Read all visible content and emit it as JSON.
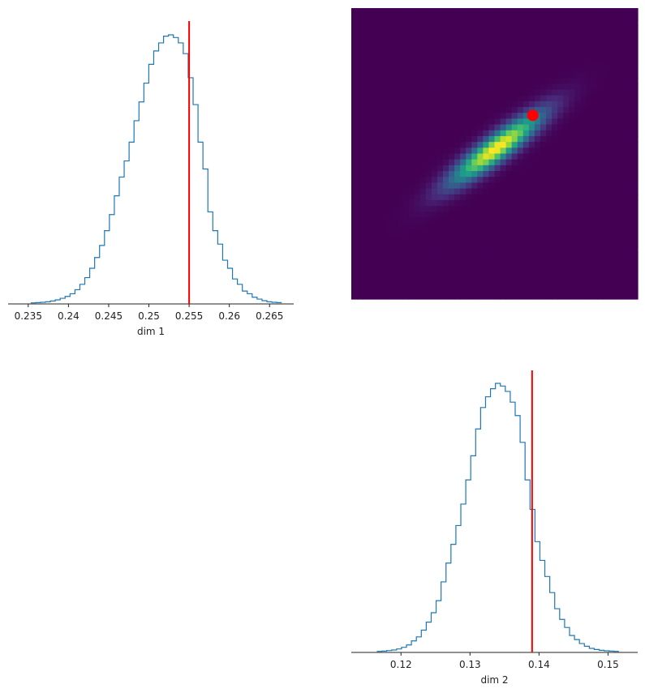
{
  "chart_data": [
    {
      "type": "histogram",
      "panel": "top-left",
      "xlabel": "dim 1",
      "xlim": [
        0.2325,
        0.268
      ],
      "xticks": [
        0.235,
        0.24,
        0.245,
        0.25,
        0.255,
        0.26,
        0.265
      ],
      "xtick_labels": [
        "0.235",
        "0.24",
        "0.245",
        "0.25",
        "0.255",
        "0.26",
        "0.265"
      ],
      "bins": {
        "start": 0.2353,
        "width": 0.000612,
        "counts": [
          0.1,
          0.2,
          0.3,
          0.5,
          0.8,
          1.2,
          1.8,
          2.5,
          3.5,
          5,
          7,
          9.5,
          13,
          17,
          21.5,
          27,
          33,
          40,
          47,
          53,
          60,
          68,
          75,
          82,
          89,
          94,
          97,
          99.5,
          100,
          99,
          97,
          93,
          84,
          74,
          60,
          50,
          34,
          27,
          22,
          16,
          13,
          9,
          7,
          4.5,
          3.5,
          2.2,
          1.5,
          0.9,
          0.5,
          0.3,
          0.2
        ]
      },
      "reference_x": 0.255,
      "line_color": "#1f77b4",
      "reference_color": "#ff0000"
    },
    {
      "type": "heatmap",
      "panel": "top-right",
      "xlim": [
        0.2325,
        0.268
      ],
      "ylim": [
        0.1128,
        0.1543
      ],
      "grid_cells": 50,
      "mean": [
        0.2505,
        0.1343
      ],
      "std": [
        0.0038,
        0.0034
      ],
      "correlation": 0.9,
      "reference_point": [
        0.255,
        0.139
      ],
      "colormap": "viridis",
      "reference_color": "#ff0000"
    },
    {
      "type": "histogram",
      "panel": "bottom-right",
      "xlabel": "dim 2",
      "xlim": [
        0.1128,
        0.1543
      ],
      "xticks": [
        0.12,
        0.13,
        0.14,
        0.15
      ],
      "xtick_labels": [
        "0.12",
        "0.13",
        "0.14",
        "0.15"
      ],
      "bins": {
        "start": 0.1165,
        "width": 0.000716,
        "counts": [
          0.1,
          0.2,
          0.4,
          0.6,
          1,
          1.6,
          2.5,
          4,
          5.5,
          8,
          11,
          14.5,
          19,
          26,
          33,
          40,
          47,
          55,
          64,
          73,
          83,
          91,
          95,
          98,
          100,
          99,
          97,
          93,
          88,
          78,
          64,
          53,
          41,
          34,
          28,
          22,
          16,
          12,
          9,
          6,
          4.5,
          3,
          2,
          1.2,
          0.8,
          0.5,
          0.3,
          0.2,
          0.1
        ]
      },
      "reference_x": 0.139,
      "line_color": "#1f77b4",
      "reference_color": "#ff0000"
    }
  ]
}
